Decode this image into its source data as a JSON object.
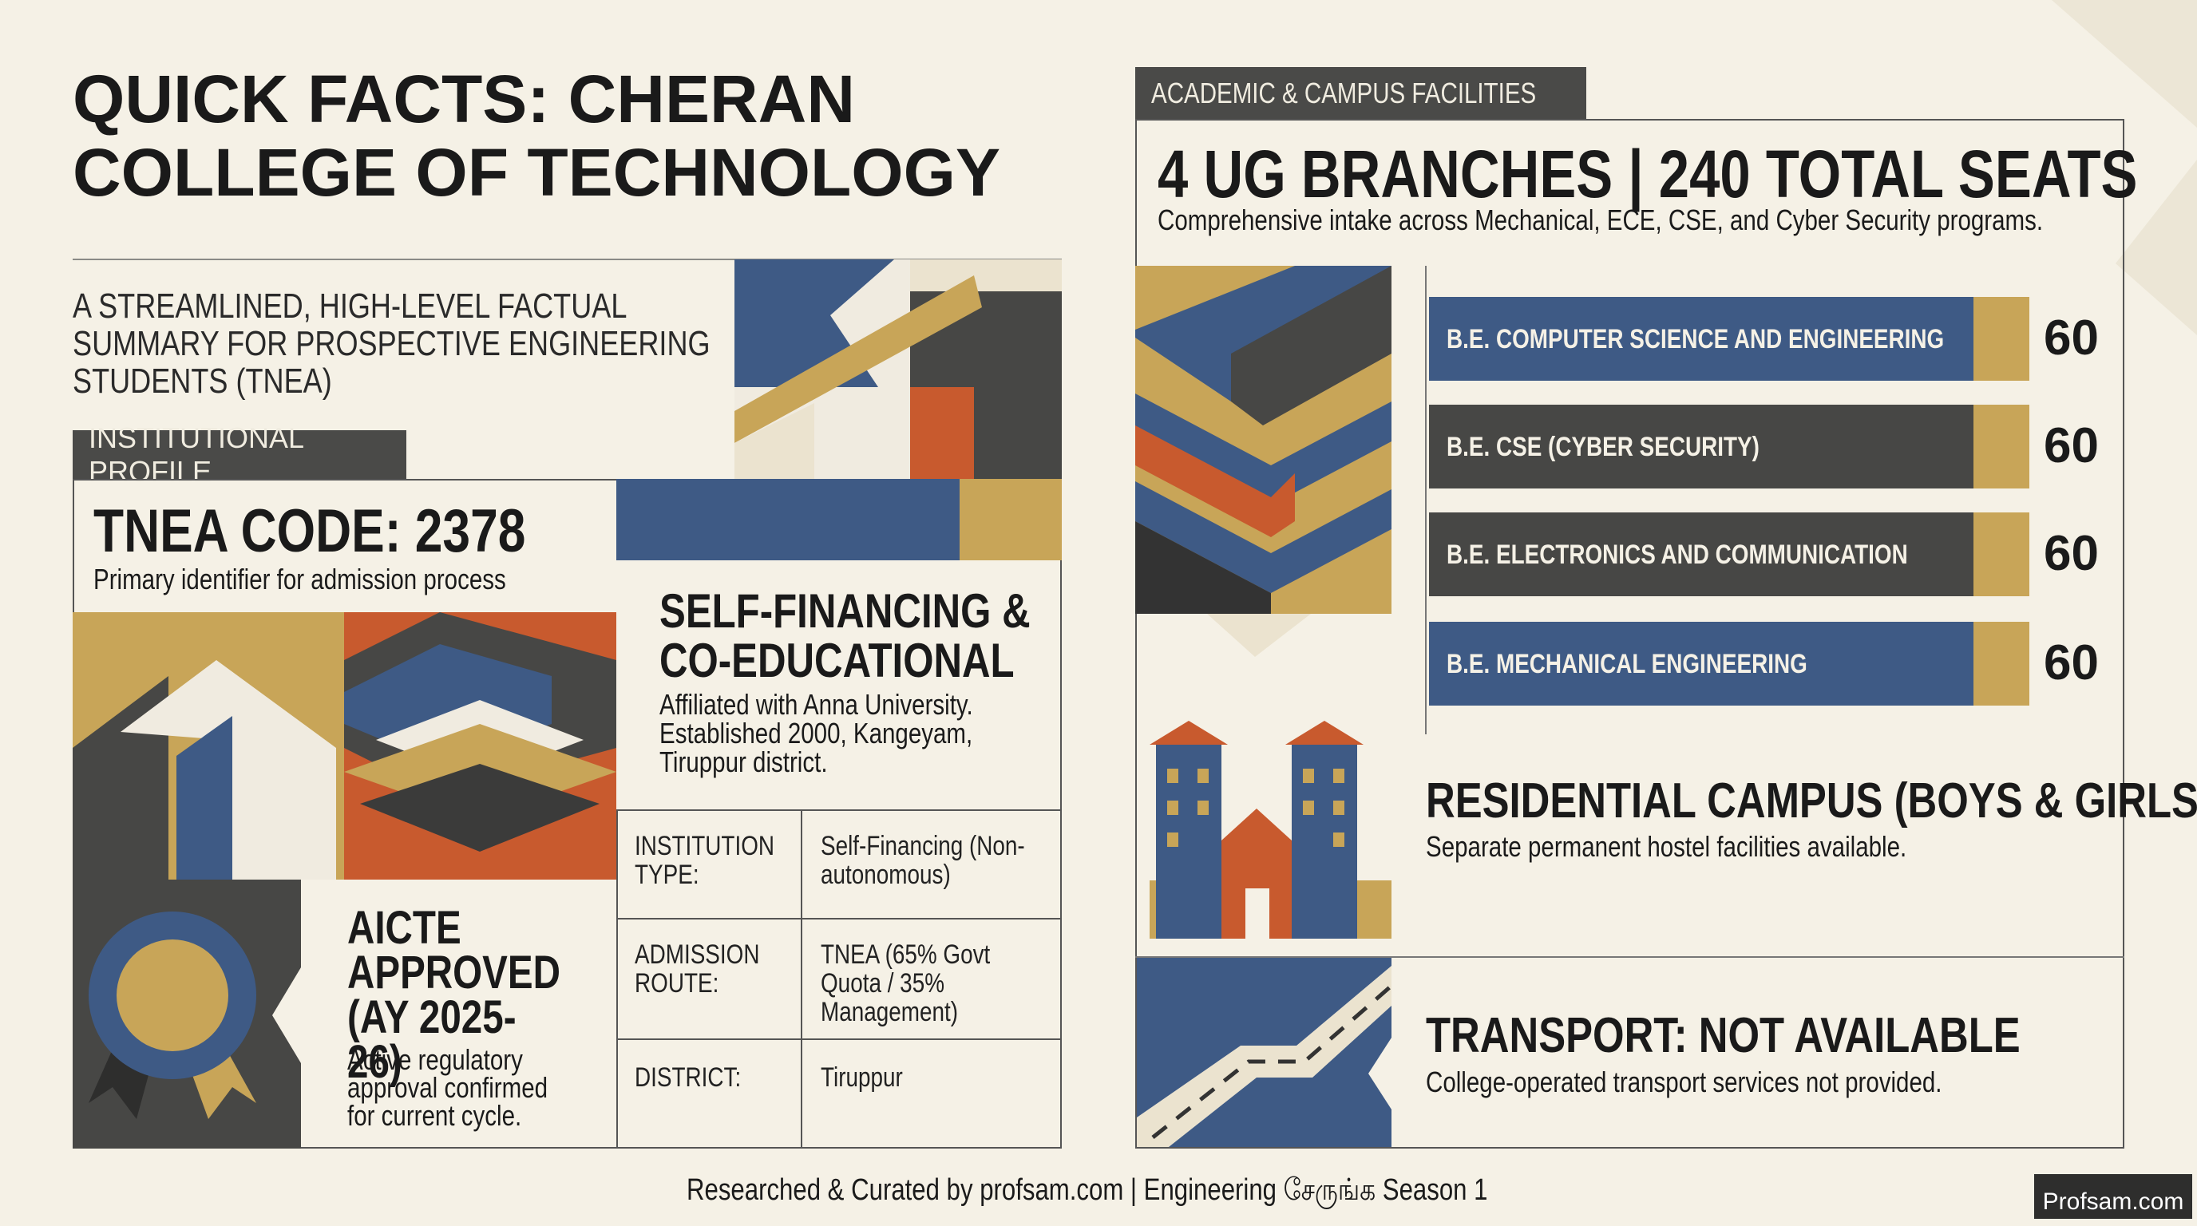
{
  "header": {
    "title": "QUICK FACTS: CHERAN COLLEGE OF TECHNOLOGY",
    "subtitle": "A STREAMLINED, HIGH-LEVEL FACTUAL SUMMARY FOR PROSPECTIVE ENGINEERING STUDENTS (TNEA)"
  },
  "profile": {
    "badge": "INSTITUTIONAL PROFILE",
    "code_title": "TNEA CODE: 2378",
    "code_text": "Primary identifier for admission process",
    "type_title": "SELF-FINANCING & CO-EDUCATIONAL",
    "type_text": "Affiliated with Anna University. Established 2000, Kangeyam, Tiruppur district.",
    "approval_title": "AICTE APPROVED (AY 2025-26)",
    "approval_text": "Active regulatory approval confirmed for current cycle.",
    "table": {
      "rows": [
        [
          "INSTITUTION TYPE:",
          "Self-Financing (Non-autonomous)"
        ],
        [
          "ADMISSION ROUTE:",
          "TNEA (65% Govt Quota / 35% Management)"
        ],
        [
          "DISTRICT:",
          "Tiruppur"
        ]
      ]
    }
  },
  "facilities": {
    "badge": "ACADEMIC & CAMPUS FACILITIES",
    "heading": "4 UG BRANCHES | 240 TOTAL SEATS",
    "subheading": "Comprehensive intake across Mechanical, ECE, CSE, and Cyber Security programs.",
    "branches": [
      {
        "name": "B.E. COMPUTER SCIENCE AND ENGINEERING",
        "seats": 60
      },
      {
        "name": "B.E. CSE (CYBER SECURITY)",
        "seats": 60
      },
      {
        "name": "B.E. ELECTRONICS AND COMMUNICATION",
        "seats": 60
      },
      {
        "name": "B.E. MECHANICAL ENGINEERING",
        "seats": 60
      }
    ],
    "residential": {
      "title": "RESIDENTIAL CAMPUS (BOYS & GIRLS)",
      "text": "Separate permanent hostel facilities available."
    },
    "transport": {
      "title": "TRANSPORT: NOT AVAILABLE",
      "text": "College-operated transport services not provided."
    }
  },
  "footer": {
    "credit": "Researched & Curated by profsam.com | Engineering சேருங்க Season 1",
    "logo": "Profsam.com"
  }
}
